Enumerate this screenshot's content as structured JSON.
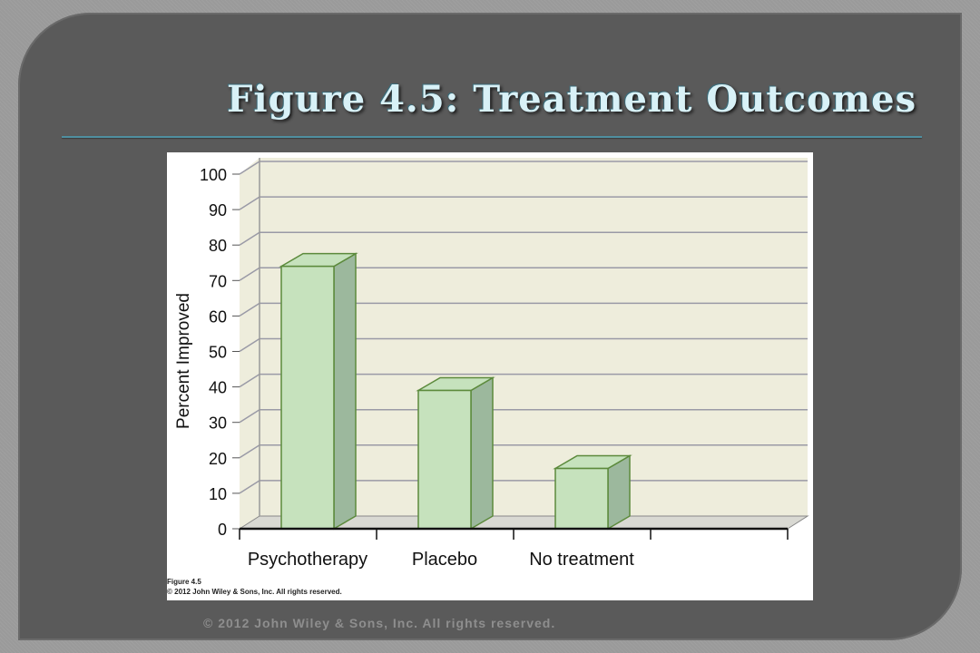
{
  "slide": {
    "title": "Figure 4.5: Treatment Outcomes",
    "footer": "© 2012 John Wiley & Sons, Inc. All rights reserved."
  },
  "figure": {
    "label": "Figure 4.5",
    "copyright": "© 2012 John Wiley & Sons, Inc. All rights reserved."
  },
  "colors": {
    "bar_front": "#c6e2bd",
    "bar_side": "#9cb89d",
    "bar_edge": "#5c8a3c",
    "plot_bg": "#eeeddc",
    "gridline": "#9a9aa6"
  },
  "chart_data": {
    "type": "bar",
    "categories": [
      "Psychotherapy",
      "Placebo",
      "No treatment"
    ],
    "values": [
      74,
      39,
      17
    ],
    "title": "",
    "xlabel": "",
    "ylabel": "Percent Improved",
    "ylim": [
      0,
      100
    ],
    "yticks": [
      0,
      10,
      20,
      30,
      40,
      50,
      60,
      70,
      80,
      90,
      100
    ],
    "grid": true,
    "legend": "none"
  }
}
